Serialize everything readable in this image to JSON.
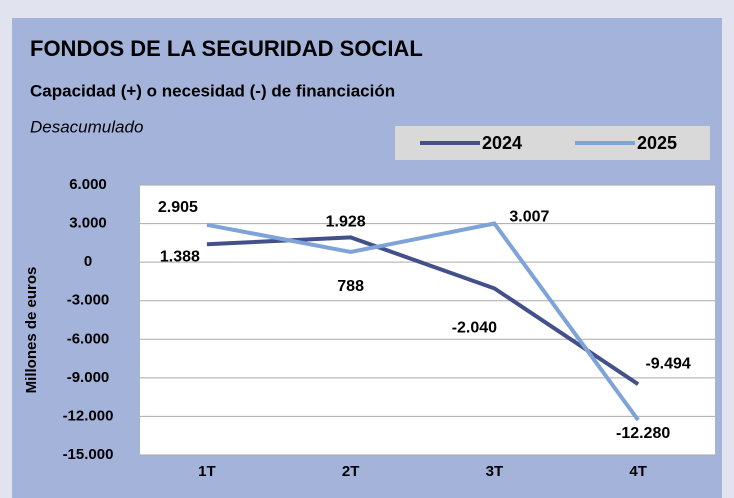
{
  "chart_data": {
    "type": "line",
    "title": "FONDOS DE LA SEGURIDAD SOCIAL",
    "subtitle": "Capacidad (+) o necesidad (-) de financiación",
    "note": "Desacumulado",
    "y_label": "Millones de euros",
    "categories": [
      "1T",
      "2T",
      "3T",
      "4T"
    ],
    "series": [
      {
        "name": "2024",
        "color": "#44508a",
        "values": [
          1388,
          1928,
          -2040,
          -9494
        ],
        "value_labels": [
          "1.388",
          "1.928",
          "-2.040",
          "-9.494"
        ]
      },
      {
        "name": "2025",
        "color": "#7ea3d8",
        "values": [
          2905,
          788,
          3007,
          -12280
        ],
        "value_labels": [
          "2.905",
          "788",
          "3.007",
          "-12.280"
        ]
      }
    ],
    "ylim": [
      -15000,
      6000
    ],
    "yticks": [
      {
        "value": -15000,
        "label": "-15.000"
      },
      {
        "value": -12000,
        "label": "-12.000"
      },
      {
        "value": -9000,
        "label": "-9.000"
      },
      {
        "value": -6000,
        "label": "-6.000"
      },
      {
        "value": -3000,
        "label": "-3.000"
      },
      0,
      {
        "value": 3000,
        "label": "3.000"
      },
      {
        "value": 6000,
        "label": "6.000"
      }
    ],
    "grid": true,
    "legend": "top-right"
  }
}
